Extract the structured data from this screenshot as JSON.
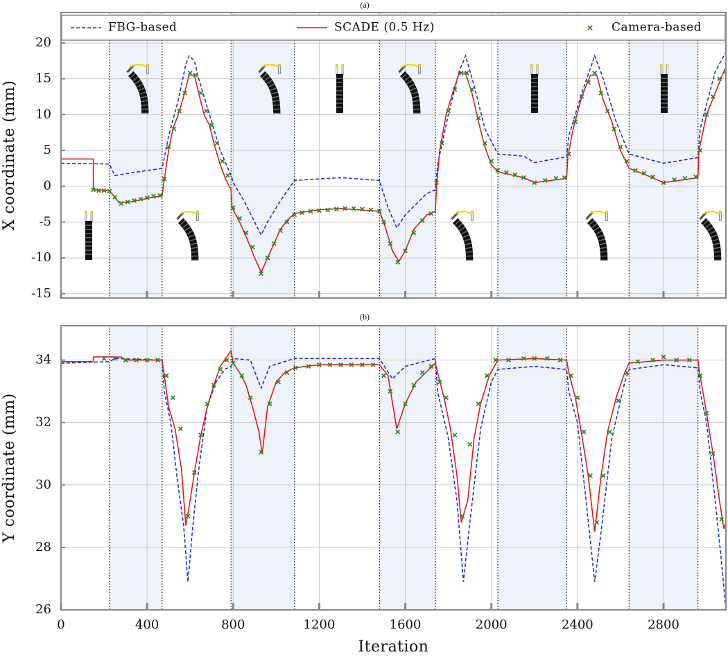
{
  "chart_data": [
    {
      "type": "line",
      "title": "(a)",
      "y_label": "X coordinate (mm)",
      "show_xtick_labels": false,
      "xlim": [
        0,
        3090
      ],
      "ylim": [
        -15.6,
        24.25
      ],
      "xticks": [
        0,
        400,
        800,
        1200,
        1600,
        2000,
        2400,
        2800
      ],
      "yticks": [
        -15,
        -10,
        -5,
        0,
        5,
        10,
        15,
        20
      ],
      "grid": true,
      "legend": "top",
      "shaded_spans": [
        [
          225,
          470
        ],
        [
          790,
          1085
        ],
        [
          1480,
          1740
        ],
        [
          2030,
          2350
        ],
        [
          2640,
          2960
        ]
      ],
      "span_color": "#eef2f9",
      "series": [
        {
          "name": "FBG-based",
          "color": "#1f2fd6",
          "style": "dashed",
          "x": [
            0,
            225,
            250,
            400,
            470,
            480,
            500,
            545,
            580,
            595,
            620,
            640,
            690,
            740,
            790,
            800,
            850,
            900,
            930,
            960,
            1020,
            1085,
            1300,
            1480,
            1520,
            1560,
            1600,
            1700,
            1740,
            1750,
            1800,
            1850,
            1880,
            1920,
            1970,
            2030,
            2150,
            2200,
            2350,
            2360,
            2420,
            2480,
            2520,
            2580,
            2640,
            2800,
            2960,
            2970,
            3040,
            3090
          ],
          "values": [
            3.2,
            3.1,
            1.5,
            2.2,
            2.5,
            4,
            7,
            12,
            17,
            18.2,
            17.5,
            15,
            10,
            5,
            1.5,
            0.5,
            -2,
            -5,
            -6.8,
            -5,
            -2,
            0.8,
            1.2,
            0.8,
            -3,
            -5.8,
            -4,
            -1,
            -0.5,
            3,
            10,
            16,
            18.2,
            14,
            8,
            4.5,
            4.2,
            3.3,
            4.1,
            7,
            13,
            18.2,
            15,
            9,
            4.5,
            3.2,
            4,
            8,
            16,
            18.7
          ]
        },
        {
          "name": "SCADE (0.5 Hz)",
          "color": "#e01c1c",
          "style": "solid",
          "x": [
            0,
            150,
            150,
            225,
            270,
            320,
            400,
            470,
            480,
            500,
            520,
            545,
            570,
            595,
            620,
            640,
            665,
            690,
            715,
            740,
            765,
            790,
            795,
            830,
            860,
            900,
            930,
            960,
            990,
            1020,
            1050,
            1085,
            1200,
            1300,
            1480,
            1500,
            1540,
            1570,
            1600,
            1640,
            1700,
            1740,
            1745,
            1760,
            1790,
            1820,
            1850,
            1880,
            1910,
            1940,
            1970,
            2000,
            2030,
            2150,
            2200,
            2350,
            2355,
            2380,
            2420,
            2460,
            2490,
            2520,
            2560,
            2600,
            2640,
            2700,
            2800,
            2960,
            2965,
            3000,
            3040,
            3080,
            3090
          ],
          "values": [
            3.8,
            3.8,
            -0.5,
            -0.6,
            -2.3,
            -2.2,
            -1.7,
            -1.3,
            1,
            5,
            8,
            10,
            12.5,
            15.5,
            15.5,
            13,
            10,
            8.5,
            5.5,
            3,
            1,
            -0.5,
            -3,
            -5,
            -7,
            -10,
            -12,
            -10,
            -8,
            -6,
            -4.8,
            -3.8,
            -3.3,
            -3.1,
            -3.5,
            -5,
            -9,
            -10.5,
            -9,
            -6,
            -4,
            -3.5,
            0,
            5,
            10,
            13,
            15.8,
            15.8,
            13,
            9,
            5.5,
            3,
            2,
            1.2,
            0.5,
            1.1,
            4,
            8,
            12.5,
            15.5,
            15.5,
            12,
            9,
            5,
            2.5,
            1.8,
            0.5,
            1.2,
            5,
            10,
            13,
            16,
            16.5
          ]
        },
        {
          "name": "Camera-based",
          "color": "#2e8b1e",
          "style": "markers",
          "x": [
            150,
            175,
            200,
            225,
            250,
            280,
            310,
            340,
            370,
            400,
            430,
            460,
            480,
            500,
            525,
            550,
            575,
            600,
            625,
            650,
            675,
            700,
            725,
            750,
            775,
            800,
            830,
            860,
            890,
            930,
            960,
            990,
            1020,
            1050,
            1085,
            1120,
            1160,
            1200,
            1240,
            1280,
            1320,
            1360,
            1400,
            1440,
            1480,
            1500,
            1530,
            1565,
            1600,
            1640,
            1680,
            1720,
            1745,
            1770,
            1800,
            1830,
            1860,
            1885,
            1910,
            1940,
            1970,
            2000,
            2030,
            2070,
            2110,
            2150,
            2200,
            2250,
            2300,
            2340,
            2360,
            2390,
            2420,
            2450,
            2480,
            2510,
            2540,
            2570,
            2600,
            2630,
            2670,
            2710,
            2750,
            2800,
            2850,
            2900,
            2950,
            2970,
            3000,
            3030,
            3060,
            3090
          ],
          "values": [
            -0.5,
            -0.6,
            -0.6,
            -0.7,
            -1.5,
            -2.4,
            -2.2,
            -2,
            -1.8,
            -1.6,
            -1.4,
            -1.3,
            1,
            5.5,
            8,
            10.5,
            13,
            15.8,
            15.5,
            13,
            10.5,
            8.5,
            6,
            3.5,
            1.5,
            -3,
            -4.5,
            -6.5,
            -8.5,
            -12.2,
            -10,
            -8,
            -6.2,
            -5,
            -4,
            -3.7,
            -3.5,
            -3.4,
            -3.3,
            -3.2,
            -3.1,
            -3.1,
            -3.2,
            -3.3,
            -3.5,
            -5,
            -8,
            -10.6,
            -9,
            -6.5,
            -4.8,
            -3.8,
            0.5,
            6,
            10.5,
            13.5,
            15.8,
            15.8,
            13.5,
            9.5,
            6,
            3.5,
            2.2,
            1.9,
            1.6,
            1.2,
            0.5,
            0.8,
            1.1,
            1.2,
            4.5,
            9,
            12.5,
            14.5,
            15.8,
            13,
            10.5,
            8,
            5.5,
            3.5,
            2.2,
            1.8,
            1.3,
            0.5,
            0.9,
            1.1,
            1.3,
            5,
            10,
            12.5,
            15,
            16
          ]
        }
      ]
    },
    {
      "type": "line",
      "title": "(b)",
      "y_label": "Y coordinate (mm)",
      "x_label": "Iteration",
      "show_xtick_labels": true,
      "xlim": [
        0,
        3090
      ],
      "ylim": [
        26,
        35.1
      ],
      "xticks": [
        0,
        400,
        800,
        1200,
        1600,
        2000,
        2400,
        2800
      ],
      "yticks": [
        26,
        28,
        30,
        32,
        34
      ],
      "grid": true,
      "shaded_spans": [
        [
          225,
          470
        ],
        [
          790,
          1085
        ],
        [
          1480,
          1740
        ],
        [
          2030,
          2350
        ],
        [
          2640,
          2960
        ]
      ],
      "span_color": "#eef2f9",
      "series": [
        {
          "color": "#1f2fd6",
          "style": "dashed",
          "x": [
            0,
            225,
            250,
            470,
            480,
            510,
            540,
            570,
            590,
            610,
            640,
            680,
            720,
            760,
            790,
            800,
            880,
            930,
            970,
            1085,
            1480,
            1540,
            1600,
            1740,
            1750,
            1800,
            1840,
            1870,
            1900,
            1950,
            2000,
            2030,
            2200,
            2350,
            2360,
            2400,
            2440,
            2480,
            2510,
            2560,
            2620,
            2640,
            2800,
            2960,
            2970,
            3000,
            3040,
            3070,
            3090
          ],
          "values": [
            33.9,
            33.95,
            34.05,
            34.0,
            33.0,
            32.0,
            30.2,
            28.7,
            26.9,
            28.5,
            30.5,
            32.5,
            33.3,
            33.7,
            33.8,
            34.05,
            34.0,
            33.1,
            33.8,
            34.05,
            34.05,
            33.4,
            33.8,
            34.05,
            33.0,
            31.5,
            29.5,
            26.9,
            28.8,
            31.8,
            33.3,
            33.7,
            33.8,
            33.7,
            33.0,
            32.0,
            29.5,
            26.9,
            28.5,
            31.5,
            33.3,
            33.7,
            33.85,
            33.75,
            33.0,
            32.0,
            29.5,
            27.5,
            26.0
          ]
        },
        {
          "color": "#e01c1c",
          "style": "solid",
          "x": [
            0,
            150,
            150,
            280,
            300,
            470,
            480,
            500,
            530,
            560,
            580,
            600,
            620,
            650,
            680,
            710,
            740,
            770,
            790,
            800,
            830,
            860,
            890,
            920,
            935,
            960,
            1000,
            1040,
            1085,
            1200,
            1480,
            1520,
            1560,
            1600,
            1650,
            1740,
            1750,
            1780,
            1810,
            1840,
            1860,
            1890,
            1920,
            1950,
            1990,
            2030,
            2200,
            2350,
            2360,
            2390,
            2420,
            2450,
            2480,
            2510,
            2540,
            2580,
            2620,
            2640,
            2800,
            2960,
            2970,
            3000,
            3030,
            3060,
            3080,
            3090
          ],
          "values": [
            33.95,
            33.95,
            34.1,
            34.1,
            34.0,
            34.0,
            33.5,
            32.5,
            31.8,
            30.5,
            28.7,
            29.5,
            30.4,
            31.6,
            32.5,
            33.2,
            33.8,
            34.1,
            34.3,
            33.9,
            33.6,
            33.2,
            32.5,
            31.7,
            31.0,
            32.5,
            33.3,
            33.6,
            33.75,
            33.85,
            33.85,
            33.5,
            31.8,
            32.6,
            33.3,
            33.9,
            33.6,
            32.8,
            31.8,
            30.3,
            28.8,
            29.5,
            31.5,
            32.6,
            33.5,
            34.0,
            34.05,
            34.0,
            33.6,
            32.8,
            31.6,
            30.3,
            28.5,
            30.3,
            31.7,
            32.8,
            33.6,
            33.9,
            34.0,
            34.0,
            33.5,
            32.3,
            31.0,
            29.5,
            28.6,
            28.8
          ]
        },
        {
          "color": "#2e8b1e",
          "style": "markers",
          "x": [
            200,
            250,
            300,
            350,
            400,
            450,
            490,
            520,
            555,
            590,
            620,
            650,
            680,
            710,
            740,
            770,
            800,
            840,
            880,
            930,
            970,
            1010,
            1050,
            1090,
            1150,
            1200,
            1250,
            1300,
            1350,
            1400,
            1450,
            1500,
            1530,
            1565,
            1600,
            1640,
            1680,
            1720,
            1760,
            1790,
            1830,
            1865,
            1900,
            1940,
            1980,
            2020,
            2080,
            2150,
            2200,
            2260,
            2320,
            2370,
            2400,
            2430,
            2460,
            2490,
            2520,
            2550,
            2590,
            2630,
            2680,
            2750,
            2800,
            2860,
            2920,
            2970,
            3000,
            3030,
            3070
          ],
          "values": [
            34.05,
            34.05,
            34.0,
            34.0,
            34.0,
            34.0,
            33.5,
            32.8,
            31.8,
            29.0,
            30.4,
            31.6,
            32.6,
            33.2,
            33.7,
            34.0,
            33.9,
            33.5,
            32.8,
            31.05,
            32.6,
            33.3,
            33.6,
            33.75,
            33.8,
            33.85,
            33.85,
            33.85,
            33.85,
            33.85,
            33.85,
            33.5,
            33.0,
            31.7,
            32.6,
            33.2,
            33.6,
            33.8,
            33.3,
            32.8,
            31.6,
            29.0,
            31.3,
            32.6,
            33.5,
            34.0,
            34.0,
            34.05,
            34.05,
            34.05,
            34.0,
            33.5,
            32.8,
            31.7,
            30.3,
            28.8,
            30.3,
            31.7,
            32.7,
            33.6,
            33.95,
            34.0,
            34.1,
            34.0,
            34.0,
            33.5,
            32.3,
            31.0,
            28.9
          ]
        }
      ]
    }
  ]
}
